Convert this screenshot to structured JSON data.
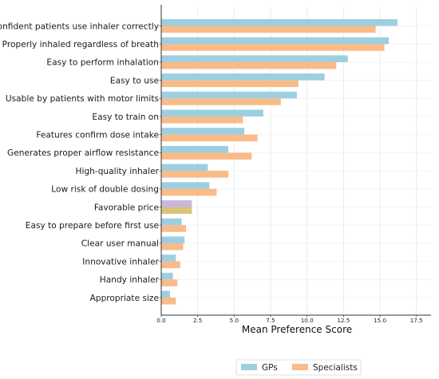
{
  "chart_data": {
    "type": "bar",
    "orientation": "horizontal",
    "categories": [
      "Confident patients use inhaler correctly",
      "Properly inhaled regardless of breath",
      "Easy to perform inhalation",
      "Easy to use",
      "Usable by patients with motor limits",
      "Easy to train on",
      "Features confirm dose intake",
      "Generates proper airflow resistance",
      "High-quality inhaler",
      "Low risk of double dosing",
      "Favorable price",
      "Easy to prepare before first use",
      "Clear user manual",
      "Innovative inhaler",
      "Handy inhaler",
      "Appropriate size"
    ],
    "series": [
      {
        "name": "GPs",
        "color": "#9dcfe0",
        "values": [
          16.2,
          15.6,
          12.8,
          11.2,
          9.3,
          7.0,
          5.7,
          4.6,
          3.2,
          3.3,
          2.1,
          1.4,
          1.6,
          1.0,
          0.8,
          0.6
        ]
      },
      {
        "name": "Specialists",
        "color": "#f9bb87",
        "values": [
          14.7,
          15.3,
          12.0,
          9.4,
          8.2,
          5.6,
          6.6,
          6.2,
          4.6,
          3.8,
          2.1,
          1.7,
          1.5,
          1.3,
          1.1,
          1.0
        ]
      }
    ],
    "overlap_colors": [
      "#c7b8e0",
      "#d9c47a"
    ],
    "xlabel": "Mean Preference Score",
    "ylabel": "",
    "title": "",
    "xlim": [
      0,
      18.5
    ],
    "xticks": [
      0.0,
      2.5,
      5.0,
      7.5,
      10.0,
      12.5,
      15.0,
      17.5
    ],
    "xtick_labels": [
      "0.0",
      "2.5",
      "5.0",
      "7.5",
      "10.0",
      "12.5",
      "15.0",
      "17.5"
    ],
    "grid": true,
    "legend_position": "bottom-center"
  }
}
